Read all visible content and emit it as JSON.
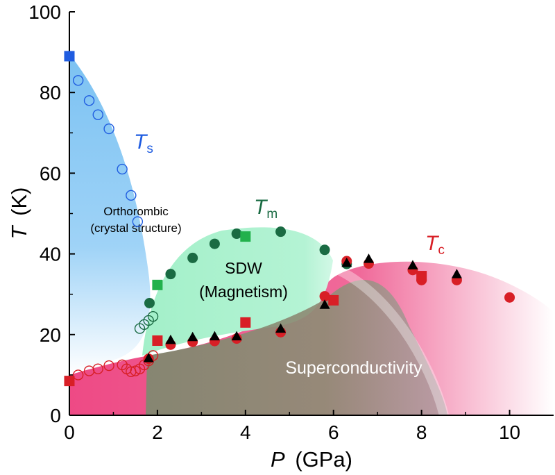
{
  "chart_data": {
    "type": "scatter",
    "title": "",
    "xlabel": {
      "symbol": "P",
      "unit": "(GPa)"
    },
    "ylabel": {
      "symbol": "T",
      "unit": "(K)"
    },
    "xlim": [
      0,
      11
    ],
    "ylim": [
      0,
      100
    ],
    "x_ticks": [
      0,
      2,
      4,
      6,
      8,
      10
    ],
    "y_ticks": [
      0,
      20,
      40,
      60,
      80,
      100
    ],
    "colors": {
      "ts_blue": "#1f5ce0",
      "tm_green": "#1a6b43",
      "tc_red": "#d81f26",
      "green_square": "#22b14c",
      "black": "#000000",
      "region_ortho": "#86c7f3",
      "region_sdw": "#9eeec6",
      "region_sc": "#ef4a86",
      "region_overlap": "#8a8a72"
    },
    "region_labels": {
      "orthorhombic_line1": "Orthorombic",
      "orthorhombic_line2": "(crystal structure)",
      "sdw_line1": "SDW",
      "sdw_line2": "(Magnetism)",
      "superconductivity": "Superconductivity"
    },
    "curve_labels": {
      "ts": {
        "symbol": "T",
        "sub": "s"
      },
      "tm": {
        "symbol": "T",
        "sub": "m"
      },
      "tc": {
        "symbol": "T",
        "sub": "c"
      }
    },
    "series": [
      {
        "name": "Ts open circles",
        "marker": "circle-open",
        "color": "#1f5ce0",
        "points": [
          [
            0.2,
            83
          ],
          [
            0.45,
            78
          ],
          [
            0.65,
            74.5
          ],
          [
            0.9,
            71
          ],
          [
            1.2,
            61
          ],
          [
            1.4,
            54.5
          ],
          [
            1.55,
            48
          ]
        ]
      },
      {
        "name": "Ts square",
        "marker": "square",
        "color": "#1f5ce0",
        "points": [
          [
            0,
            89
          ]
        ]
      },
      {
        "name": "Tm filled circles",
        "marker": "circle",
        "color": "#1a6b43",
        "points": [
          [
            1.82,
            27.8
          ],
          [
            2.3,
            35
          ],
          [
            2.8,
            39
          ],
          [
            3.3,
            42.5
          ],
          [
            3.8,
            45
          ],
          [
            4.8,
            45.5
          ],
          [
            5.8,
            41
          ],
          [
            6.3,
            37.5
          ]
        ]
      },
      {
        "name": "Tm open circles",
        "marker": "circle-open",
        "color": "#1a6b43",
        "points": [
          [
            1.6,
            21.5
          ],
          [
            1.7,
            22.5
          ],
          [
            1.8,
            23.5
          ],
          [
            1.9,
            24.5
          ]
        ]
      },
      {
        "name": "Tm green squares",
        "marker": "square",
        "color": "#22b14c",
        "points": [
          [
            2.0,
            32.3
          ],
          [
            4.0,
            44.3
          ]
        ]
      },
      {
        "name": "Tc filled circles",
        "marker": "circle",
        "color": "#d81f26",
        "points": [
          [
            1.8,
            14
          ],
          [
            2.3,
            17.5
          ],
          [
            2.8,
            18.2
          ],
          [
            3.3,
            18.4
          ],
          [
            3.8,
            19
          ],
          [
            4.8,
            20.6
          ],
          [
            5.8,
            29.5
          ],
          [
            6.3,
            38.2
          ],
          [
            6.8,
            37.6
          ],
          [
            7.8,
            36
          ],
          [
            8.0,
            33.5
          ],
          [
            8.8,
            33.5
          ],
          [
            10.0,
            29.2
          ]
        ]
      },
      {
        "name": "Tc open circles",
        "marker": "circle-open",
        "color": "#d81f26",
        "points": [
          [
            0.2,
            10
          ],
          [
            0.45,
            11
          ],
          [
            0.65,
            11.5
          ],
          [
            0.9,
            12.3
          ],
          [
            1.2,
            12.5
          ],
          [
            1.3,
            11.5
          ],
          [
            1.4,
            10.8
          ],
          [
            1.5,
            11
          ],
          [
            1.6,
            11.5
          ],
          [
            1.7,
            12.5
          ],
          [
            1.8,
            13.5
          ],
          [
            1.9,
            14.8
          ]
        ]
      },
      {
        "name": "Tc red squares",
        "marker": "square",
        "color": "#d81f26",
        "points": [
          [
            0,
            8.5
          ],
          [
            2.0,
            18.5
          ],
          [
            4.0,
            23
          ],
          [
            6.0,
            28.5
          ],
          [
            8.0,
            34.5
          ]
        ]
      },
      {
        "name": "Tc black triangles",
        "marker": "triangle",
        "color": "#000000",
        "points": [
          [
            1.8,
            14.2
          ],
          [
            2.3,
            18.7
          ],
          [
            2.8,
            19.4
          ],
          [
            3.3,
            19.6
          ],
          [
            3.8,
            19.6
          ],
          [
            4.8,
            21.5
          ],
          [
            5.8,
            27.4
          ],
          [
            6.3,
            37.8
          ],
          [
            6.8,
            38.8
          ],
          [
            7.8,
            37.2
          ],
          [
            8.8,
            35
          ]
        ]
      }
    ]
  }
}
